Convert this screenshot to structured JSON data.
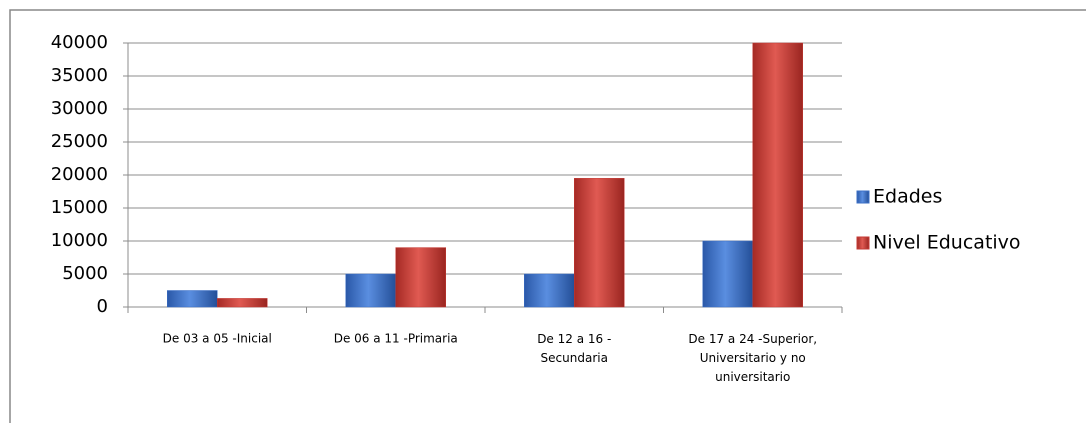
{
  "chart_data": {
    "type": "bar",
    "categories": [
      "De 03 a 05  -Inicial",
      "De 06 a 11  -Primaria",
      "De 12 a 16  -\nSecundaria",
      "De 17 a 24  -Superior,\nUniversitario y no\nuniversitario"
    ],
    "series": [
      {
        "name": "Edades",
        "color": "#3b6fc6",
        "values": [
          2500,
          5000,
          5000,
          10000
        ]
      },
      {
        "name": "Nivel Educativo",
        "color": "#c43a34",
        "values": [
          1300,
          9000,
          19500,
          40000
        ]
      }
    ],
    "ylim": [
      0,
      40000
    ],
    "yticks": [
      0,
      5000,
      10000,
      15000,
      20000,
      25000,
      30000,
      35000,
      40000
    ],
    "grid": true,
    "legend": "right"
  }
}
